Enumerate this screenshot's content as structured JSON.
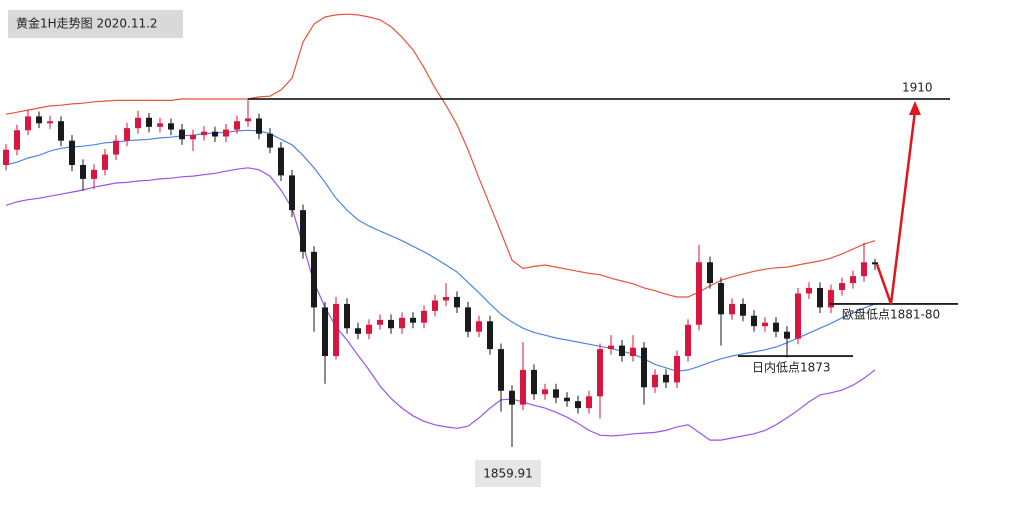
{
  "chart_data": {
    "type": "candlestick",
    "title": "黄金1H走势图 2020.11.2",
    "ylim": [
      1848.1,
      1924.25
    ],
    "up_color": "#d9163f",
    "down_color": "#1a1a1a",
    "open": [
      1900.5,
      1902.7,
      1905.5,
      1907.5,
      1906.5,
      1906.8,
      1904.0,
      1900.5,
      1898.5,
      1899.8,
      1902.0,
      1904.0,
      1905.8,
      1907.3,
      1906.0,
      1906.5,
      1905.6,
      1904.2,
      1904.8,
      1905.3,
      1904.6,
      1905.6,
      1906.8,
      1907.2,
      1905.0,
      1903.0,
      1899.0,
      1894.0,
      1888.0,
      1880.0,
      1873.0,
      1880.5,
      1877.0,
      1876.2,
      1877.5,
      1878.2,
      1877.0,
      1878.5,
      1877.8,
      1879.5,
      1881.0,
      1881.5,
      1880.0,
      1876.5,
      1878.0,
      1874.0,
      1868.0,
      1866.0,
      1871.0,
      1867.5,
      1868.2,
      1867.0,
      1866.5,
      1865.5,
      1867.2,
      1874.0,
      1874.5,
      1873.0,
      1874.2,
      1868.5,
      1870.3,
      1869.2,
      1873.0,
      1877.5,
      1886.5,
      1883.5,
      1879.0,
      1880.5,
      1878.8,
      1877.3,
      1877.8,
      1876.5,
      1875.5,
      1882.0,
      1882.8,
      1880.0,
      1882.5,
      1883.5,
      1884.5,
      1886.5
    ],
    "high": [
      1903.5,
      1906.3,
      1908.5,
      1908.2,
      1907.6,
      1907.5,
      1904.8,
      1901.3,
      1900.6,
      1902.8,
      1904.8,
      1906.6,
      1908.3,
      1908.0,
      1907.3,
      1907.2,
      1906.4,
      1905.6,
      1906.1,
      1906.0,
      1906.4,
      1907.6,
      1909.9,
      1907.9,
      1905.8,
      1903.8,
      1899.8,
      1894.8,
      1888.8,
      1880.8,
      1881.5,
      1881.3,
      1877.8,
      1878.3,
      1879.0,
      1879.0,
      1879.3,
      1879.3,
      1880.3,
      1881.8,
      1883.5,
      1882.3,
      1880.8,
      1878.8,
      1878.8,
      1874.8,
      1868.8,
      1875.0,
      1871.8,
      1869.0,
      1869.0,
      1867.8,
      1867.3,
      1868.0,
      1874.8,
      1876.0,
      1875.3,
      1876.0,
      1875.0,
      1871.1,
      1871.1,
      1873.8,
      1878.3,
      1889.0,
      1887.3,
      1884.3,
      1881.3,
      1881.3,
      1879.6,
      1878.6,
      1878.6,
      1877.3,
      1882.8,
      1883.6,
      1883.6,
      1883.3,
      1884.3,
      1885.3,
      1889.3,
      1887.0
    ],
    "low": [
      1899.7,
      1901.9,
      1904.8,
      1905.8,
      1905.7,
      1903.2,
      1899.6,
      1896.8,
      1897.0,
      1899.0,
      1901.2,
      1903.2,
      1905.0,
      1905.2,
      1905.2,
      1904.8,
      1903.4,
      1902.5,
      1904.0,
      1903.8,
      1903.8,
      1905.0,
      1906.0,
      1904.2,
      1902.2,
      1898.2,
      1893.0,
      1887.0,
      1876.5,
      1869.0,
      1872.5,
      1876.2,
      1875.4,
      1875.4,
      1876.8,
      1876.2,
      1876.2,
      1877.0,
      1877.0,
      1878.7,
      1880.2,
      1879.2,
      1875.7,
      1875.7,
      1873.2,
      1865.0,
      1859.91,
      1865.2,
      1866.7,
      1866.7,
      1866.2,
      1865.7,
      1864.7,
      1864.7,
      1864.0,
      1873.2,
      1872.2,
      1872.2,
      1866.0,
      1867.7,
      1868.4,
      1868.4,
      1872.2,
      1876.7,
      1882.7,
      1874.5,
      1878.2,
      1878.0,
      1876.5,
      1876.5,
      1875.7,
      1872.8,
      1874.7,
      1881.2,
      1879.2,
      1879.2,
      1881.7,
      1882.7,
      1883.7,
      1885.4
    ],
    "close": [
      1902.7,
      1905.5,
      1907.5,
      1906.5,
      1906.8,
      1904.0,
      1900.5,
      1898.5,
      1899.8,
      1902.0,
      1904.0,
      1905.8,
      1907.3,
      1906.0,
      1906.5,
      1905.6,
      1904.2,
      1904.8,
      1905.3,
      1904.6,
      1905.6,
      1906.8,
      1907.2,
      1905.0,
      1903.0,
      1899.0,
      1894.0,
      1888.0,
      1880.0,
      1873.0,
      1880.5,
      1877.0,
      1876.2,
      1877.5,
      1878.2,
      1877.0,
      1878.5,
      1877.8,
      1879.5,
      1881.0,
      1881.5,
      1880.0,
      1876.5,
      1878.0,
      1874.0,
      1868.0,
      1866.0,
      1871.0,
      1867.5,
      1868.2,
      1867.0,
      1866.5,
      1865.5,
      1867.2,
      1874.0,
      1874.5,
      1873.0,
      1874.2,
      1868.5,
      1870.3,
      1869.2,
      1873.0,
      1877.5,
      1886.5,
      1883.5,
      1879.0,
      1880.5,
      1878.8,
      1877.3,
      1877.8,
      1876.5,
      1875.5,
      1882.0,
      1882.8,
      1880.0,
      1882.5,
      1883.5,
      1884.5,
      1886.5,
      1886.2
    ],
    "bands": [
      {
        "color": "#e4553c",
        "values": [
          1907.8,
          1908.1,
          1908.4,
          1908.7,
          1909.0,
          1909.1,
          1909.3,
          1909.4,
          1909.6,
          1909.7,
          1909.8,
          1909.8,
          1909.8,
          1909.8,
          1909.8,
          1909.8,
          1910.0,
          1910.0,
          1910.0,
          1910.0,
          1910.0,
          1910.0,
          1910.0,
          1910.3,
          1910.4,
          1911.3,
          1913.0,
          1918.2,
          1920.8,
          1921.8,
          1922.1,
          1922.2,
          1922.1,
          1921.8,
          1921.4,
          1920.4,
          1918.9,
          1917.1,
          1914.5,
          1911.6,
          1909.1,
          1906.3,
          1902.7,
          1898.6,
          1894.7,
          1890.8,
          1886.8,
          1885.6,
          1885.9,
          1886.1,
          1885.8,
          1885.5,
          1885.2,
          1884.9,
          1884.7,
          1884.2,
          1883.8,
          1883.4,
          1882.8,
          1882.4,
          1881.9,
          1881.5,
          1881.5,
          1882.2,
          1883.1,
          1883.9,
          1884.4,
          1884.8,
          1885.2,
          1885.5,
          1885.7,
          1885.8,
          1886.1,
          1886.4,
          1886.7,
          1887.1,
          1887.7,
          1888.4,
          1889.1,
          1889.6
        ]
      },
      {
        "color": "#4f86e0",
        "values": [
          1900.5,
          1900.9,
          1901.5,
          1901.9,
          1902.5,
          1902.9,
          1903.1,
          1903.2,
          1903.4,
          1903.7,
          1903.8,
          1904.0,
          1904.1,
          1904.2,
          1904.4,
          1904.5,
          1904.7,
          1904.8,
          1905.0,
          1905.1,
          1905.2,
          1905.4,
          1905.5,
          1905.4,
          1905.0,
          1904.2,
          1903.4,
          1901.9,
          1900.1,
          1898.0,
          1895.7,
          1894.0,
          1892.6,
          1891.7,
          1891.0,
          1890.3,
          1889.6,
          1888.8,
          1888.0,
          1887.1,
          1886.1,
          1885.1,
          1883.6,
          1882.1,
          1880.5,
          1879.0,
          1877.9,
          1877.0,
          1876.4,
          1876.0,
          1875.6,
          1875.3,
          1875.0,
          1874.7,
          1874.4,
          1874.1,
          1873.7,
          1873.3,
          1872.6,
          1871.8,
          1871.3,
          1870.8,
          1871.0,
          1871.5,
          1872.1,
          1872.6,
          1873.0,
          1873.3,
          1873.6,
          1873.9,
          1874.3,
          1874.9,
          1875.6,
          1876.3,
          1877.0,
          1877.7,
          1878.5,
          1879.2,
          1879.9,
          1880.5
        ]
      },
      {
        "color": "#9a55e8",
        "values": [
          1894.7,
          1895.2,
          1895.5,
          1895.7,
          1896.0,
          1896.3,
          1896.6,
          1896.9,
          1897.3,
          1897.6,
          1897.9,
          1898.0,
          1898.2,
          1898.3,
          1898.5,
          1898.6,
          1898.8,
          1898.9,
          1899.1,
          1899.3,
          1899.6,
          1899.9,
          1900.1,
          1899.8,
          1898.9,
          1896.9,
          1894.3,
          1889.0,
          1883.6,
          1880.0,
          1877.2,
          1875.3,
          1873.1,
          1871.0,
          1868.7,
          1866.9,
          1865.5,
          1864.4,
          1863.6,
          1863.1,
          1862.8,
          1862.6,
          1862.9,
          1864.1,
          1865.5,
          1866.7,
          1866.8,
          1866.4,
          1865.9,
          1865.5,
          1864.9,
          1864.2,
          1863.3,
          1862.3,
          1861.6,
          1861.5,
          1861.6,
          1861.8,
          1861.9,
          1862.0,
          1862.3,
          1862.8,
          1863.1,
          1862.0,
          1860.9,
          1860.9,
          1861.2,
          1861.5,
          1861.8,
          1862.3,
          1863.1,
          1864.1,
          1865.2,
          1866.4,
          1867.4,
          1867.7,
          1868.1,
          1868.8,
          1869.8,
          1871.0
        ]
      }
    ],
    "resistance": 1910,
    "supports": [
      {
        "value": 1880.5,
        "label": "欧盘低点1881-80"
      },
      {
        "value": 1873,
        "label": "日内低点1873"
      }
    ],
    "projection_color": "#e0161e"
  }
}
